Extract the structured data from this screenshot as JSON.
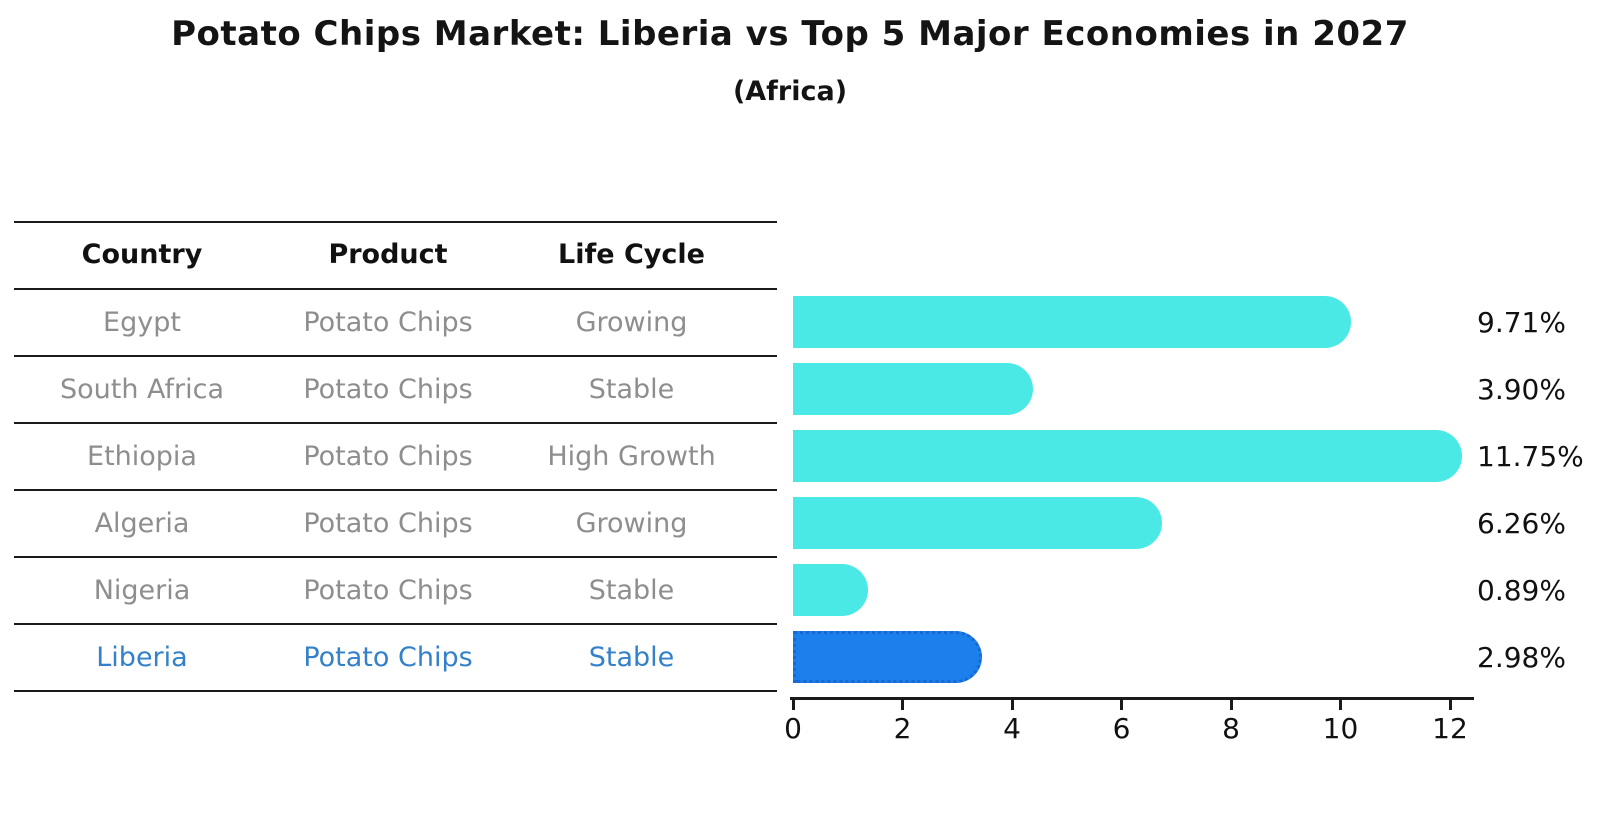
{
  "title": "Potato Chips Market: Liberia vs Top 5 Major Economies in 2027",
  "subtitle": "(Africa)",
  "table": {
    "headers": {
      "country": "Country",
      "product": "Product",
      "life_cycle": "Life Cycle"
    },
    "rows": [
      {
        "country": "Egypt",
        "product": "Potato Chips",
        "life_cycle": "Growing"
      },
      {
        "country": "South Africa",
        "product": "Potato Chips",
        "life_cycle": "Stable"
      },
      {
        "country": "Ethiopia",
        "product": "Potato Chips",
        "life_cycle": "High Growth"
      },
      {
        "country": "Algeria",
        "product": "Potato Chips",
        "life_cycle": "Growing"
      },
      {
        "country": "Nigeria",
        "product": "Potato Chips",
        "life_cycle": "Stable"
      },
      {
        "country": "Liberia",
        "product": "Potato Chips",
        "life_cycle": "Stable"
      }
    ],
    "highlight_row": "Liberia"
  },
  "chart_data": {
    "type": "bar",
    "orientation": "horizontal",
    "title": "Potato Chips Market: Liberia vs Top 5 Major Economies in 2027 (Africa)",
    "categories": [
      "Egypt",
      "South Africa",
      "Ethiopia",
      "Algeria",
      "Nigeria",
      "Liberia"
    ],
    "values": [
      9.71,
      3.9,
      11.75,
      6.26,
      0.89,
      2.98
    ],
    "labels": [
      "9.71%",
      "3.90%",
      "11.75%",
      "6.26%",
      "0.89%",
      "2.98%"
    ],
    "unit": "%",
    "x_ticks": [
      "0",
      "2",
      "4",
      "6",
      "8",
      "10",
      "12"
    ],
    "xlim": [
      0,
      12.45
    ],
    "grid": false,
    "legend": false,
    "highlight_index": 5,
    "colors": {
      "bar": "#4BE9E6",
      "highlight_bar": "#1C80EC",
      "highlight_border": "#1668D2",
      "label_text": "#111111"
    }
  },
  "colors": {
    "background": "#FFFFFF",
    "line": "#1A1A1A",
    "header_text": "#111111",
    "row_text": "#8E8E8E",
    "highlight_text": "#3381C9"
  }
}
